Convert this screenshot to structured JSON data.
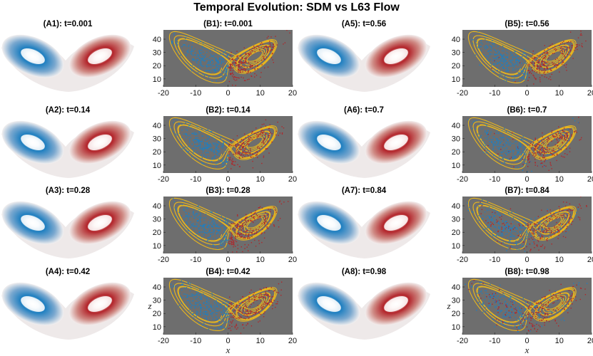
{
  "figure": {
    "title": "Temporal Evolution: SDM vs L63 Flow"
  },
  "colors": {
    "plot_bg": "#6e6e6e",
    "trajectory": "#e8b61e",
    "left_lobe": "#1f7fc0",
    "right_lobe": "#b0262a",
    "sdm_blue": "#1d5fa6",
    "sdm_red": "#b3262c"
  },
  "chart_data": [
    {
      "id": "A1",
      "type": "heatmap",
      "title": "(A1): t=0.001",
      "t": 0.001
    },
    {
      "id": "A2",
      "type": "heatmap",
      "title": "(A2): t=0.14",
      "t": 0.14
    },
    {
      "id": "A3",
      "type": "heatmap",
      "title": "(A3): t=0.28",
      "t": 0.28
    },
    {
      "id": "A4",
      "type": "heatmap",
      "title": "(A4): t=0.42",
      "t": 0.42
    },
    {
      "id": "A5",
      "type": "heatmap",
      "title": "(A5): t=0.56",
      "t": 0.56
    },
    {
      "id": "A6",
      "type": "heatmap",
      "title": "(A6): t=0.7",
      "t": 0.7
    },
    {
      "id": "A7",
      "type": "heatmap",
      "title": "(A7): t=0.84",
      "t": 0.84
    },
    {
      "id": "A8",
      "type": "heatmap",
      "title": "(A8): t=0.98",
      "t": 0.98
    },
    {
      "id": "B1",
      "type": "scatter",
      "title": "(B1): t=0.001",
      "t": 0.001,
      "xlim": [
        -20,
        20
      ],
      "ylim": [
        4,
        47
      ],
      "xticks": [
        -20,
        -10,
        0,
        10,
        20
      ],
      "yticks": [
        10,
        20,
        30,
        40
      ],
      "xlabel": "",
      "ylabel": ""
    },
    {
      "id": "B2",
      "type": "scatter",
      "title": "(B2): t=0.14",
      "t": 0.14,
      "xlim": [
        -20,
        20
      ],
      "ylim": [
        4,
        47
      ],
      "xticks": [
        -20,
        -10,
        0,
        10,
        20
      ],
      "yticks": [
        10,
        20,
        30,
        40
      ],
      "xlabel": "",
      "ylabel": ""
    },
    {
      "id": "B3",
      "type": "scatter",
      "title": "(B3): t=0.28",
      "t": 0.28,
      "xlim": [
        -20,
        20
      ],
      "ylim": [
        4,
        47
      ],
      "xticks": [
        -20,
        -10,
        0,
        10,
        20
      ],
      "yticks": [
        10,
        20,
        30,
        40
      ],
      "xlabel": "",
      "ylabel": ""
    },
    {
      "id": "B4",
      "type": "scatter",
      "title": "(B4): t=0.42",
      "t": 0.42,
      "xlim": [
        -20,
        20
      ],
      "ylim": [
        4,
        47
      ],
      "xticks": [
        -20,
        -10,
        0,
        10,
        20
      ],
      "yticks": [
        10,
        20,
        30,
        40
      ],
      "xlabel": "x",
      "ylabel": "z"
    },
    {
      "id": "B5",
      "type": "scatter",
      "title": "(B5): t=0.56",
      "t": 0.56,
      "xlim": [
        -20,
        20
      ],
      "ylim": [
        4,
        47
      ],
      "xticks": [
        -20,
        -10,
        0,
        10,
        20
      ],
      "yticks": [
        10,
        20,
        30,
        40
      ],
      "xlabel": "",
      "ylabel": ""
    },
    {
      "id": "B6",
      "type": "scatter",
      "title": "(B6): t=0.7",
      "t": 0.7,
      "xlim": [
        -20,
        20
      ],
      "ylim": [
        4,
        47
      ],
      "xticks": [
        -20,
        -10,
        0,
        10,
        20
      ],
      "yticks": [
        10,
        20,
        30,
        40
      ],
      "xlabel": "",
      "ylabel": ""
    },
    {
      "id": "B7",
      "type": "scatter",
      "title": "(B7): t=0.84",
      "t": 0.84,
      "xlim": [
        -20,
        20
      ],
      "ylim": [
        4,
        47
      ],
      "xticks": [
        -20,
        -10,
        0,
        10,
        20
      ],
      "yticks": [
        10,
        20,
        30,
        40
      ],
      "xlabel": "",
      "ylabel": ""
    },
    {
      "id": "B8",
      "type": "scatter",
      "title": "(B8): t=0.98",
      "t": 0.98,
      "xlim": [
        -20,
        20
      ],
      "ylim": [
        4,
        47
      ],
      "xticks": [
        -20,
        -10,
        0,
        10,
        20
      ],
      "yticks": [
        10,
        20,
        30,
        40
      ],
      "xlabel": "x",
      "ylabel": "z"
    }
  ]
}
